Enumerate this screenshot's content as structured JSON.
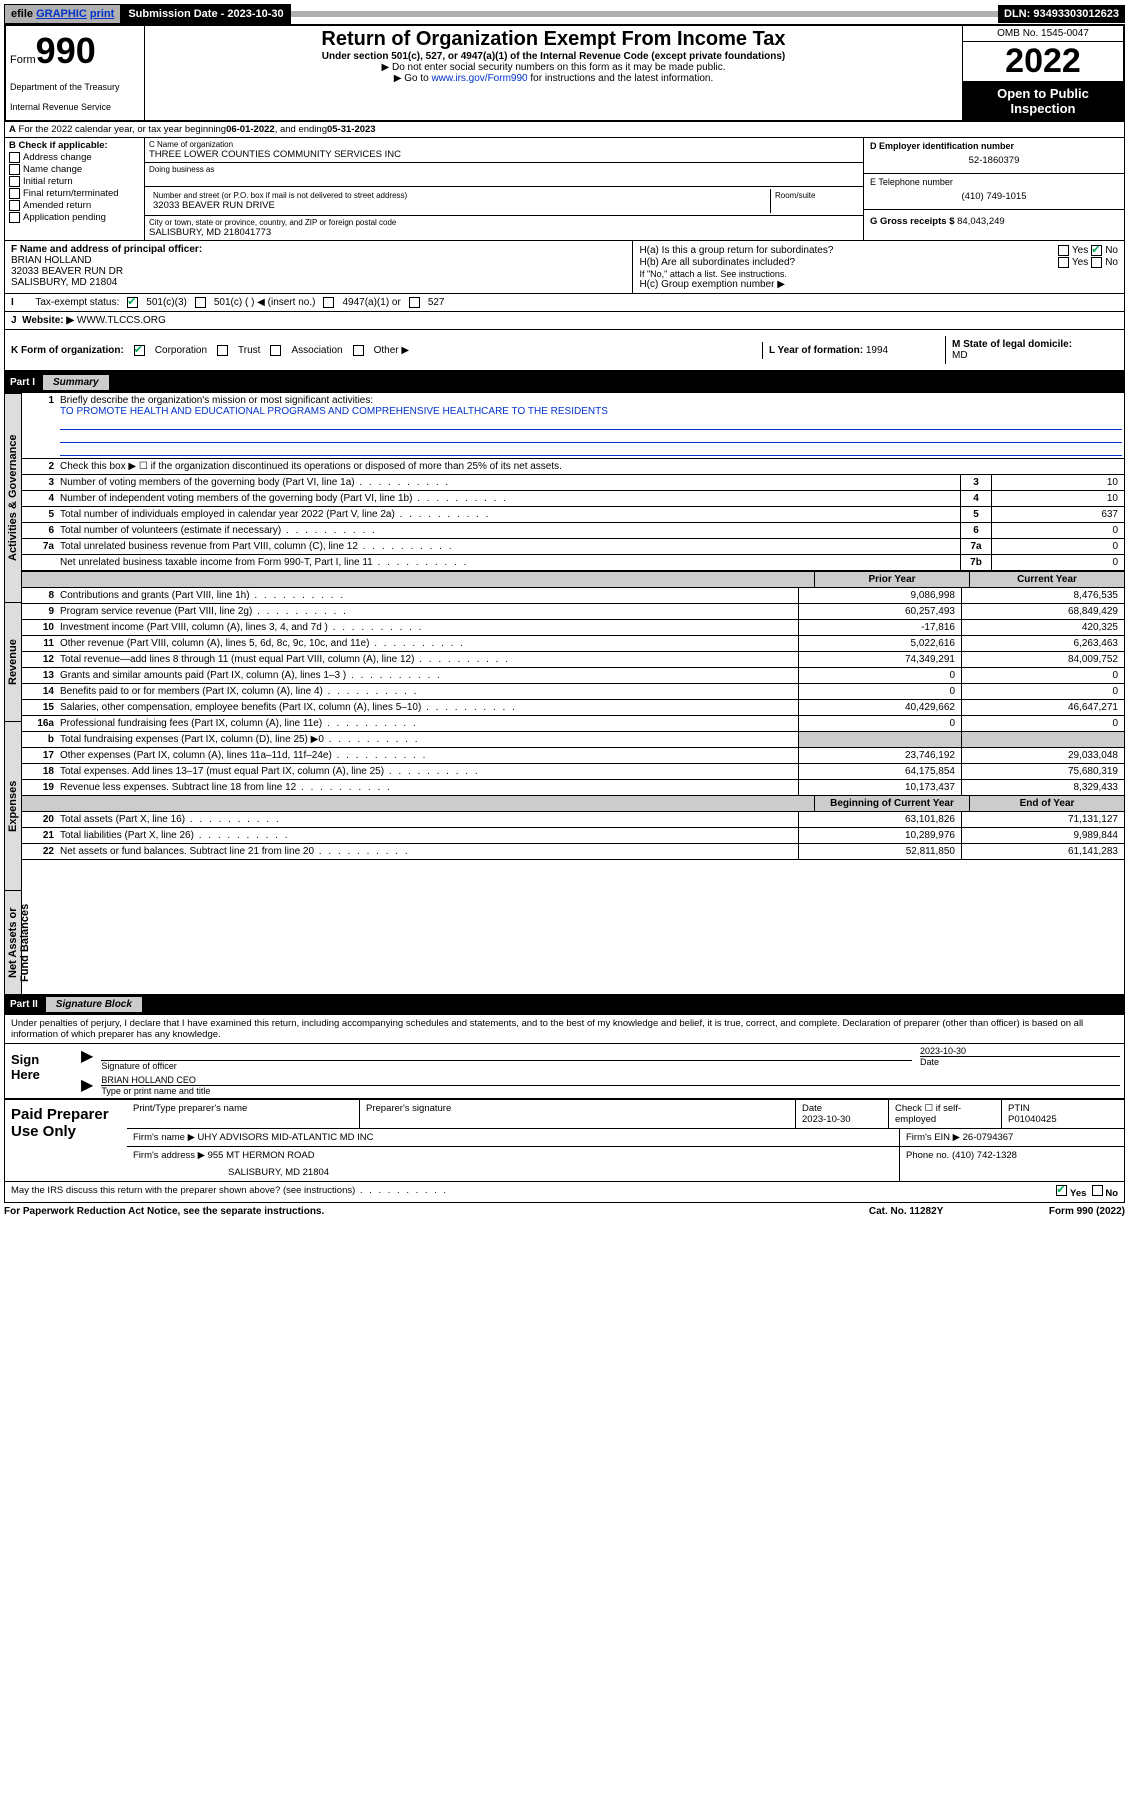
{
  "page_background": "#ffffff",
  "link_color": "#0033cc",
  "topbar": {
    "efile1": "efile",
    "efile2": "GRAPHIC",
    "efile3": "print",
    "submission_label": "Submission Date - 2023-10-30",
    "dln": "DLN: 93493303012623"
  },
  "header": {
    "form_word": "Form",
    "form_num": "990",
    "dept": "Department of the Treasury",
    "irs": "Internal Revenue Service",
    "title": "Return of Organization Exempt From Income Tax",
    "subtitle": "Under section 501(c), 527, or 4947(a)(1) of the Internal Revenue Code (except private foundations)",
    "note1": "▶ Do not enter social security numbers on this form as it may be made public.",
    "note2_pre": "▶ Go to ",
    "note2_link": "www.irs.gov/Form990",
    "note2_post": " for instructions and the latest information.",
    "omb": "OMB No. 1545-0047",
    "year": "2022",
    "open_pub": "Open to Public Inspection"
  },
  "a_line": {
    "text_pre": "For the 2022 calendar year, or tax year beginning ",
    "begin": "06-01-2022",
    "mid": " , and ending ",
    "end": "05-31-2023"
  },
  "blockB": {
    "heading": "B Check if applicable:",
    "items": [
      "Address change",
      "Name change",
      "Initial return",
      "Final return/terminated",
      "Amended return",
      "Application pending"
    ]
  },
  "blockC": {
    "label_name": "C Name of organization",
    "org_name": "THREE LOWER COUNTIES COMMUNITY SERVICES INC",
    "dba_label": "Doing business as",
    "addr_label": "Number and street (or P.O. box if mail is not delivered to street address)",
    "room_label": "Room/suite",
    "address": "32033 BEAVER RUN DRIVE",
    "city_label": "City or town, state or province, country, and ZIP or foreign postal code",
    "city": "SALISBURY, MD  218041773"
  },
  "blockD": {
    "label": "D Employer identification number",
    "value": "52-1860379"
  },
  "blockE": {
    "label": "E Telephone number",
    "value": "(410) 749-1015"
  },
  "blockG": {
    "label": "G Gross receipts $",
    "value": "84,043,249"
  },
  "blockF": {
    "label": "F  Name and address of principal officer:",
    "name": "BRIAN HOLLAND",
    "addr1": "32033 BEAVER RUN DR",
    "addr2": "SALISBURY, MD  21804"
  },
  "blockH": {
    "a_label": "H(a)  Is this a group return for subordinates?",
    "b_label": "H(b)  Are all subordinates included?",
    "b_note": "If \"No,\" attach a list. See instructions.",
    "c_label": "H(c)  Group exemption number ▶",
    "yes": "Yes",
    "no": "No"
  },
  "row_i": {
    "label": "Tax-exempt status:",
    "opt1": "501(c)(3)",
    "opt2": "501(c) (   ) ◀ (insert no.)",
    "opt3": "4947(a)(1) or",
    "opt4": "527"
  },
  "row_j": {
    "label": "Website: ▶",
    "value": "WWW.TLCCS.ORG"
  },
  "row_k": {
    "label": "K Form of organization:",
    "opts": [
      "Corporation",
      "Trust",
      "Association",
      "Other ▶"
    ]
  },
  "row_l": {
    "label": "L Year of formation:",
    "value": "1994"
  },
  "row_m": {
    "label": "M State of legal domicile:",
    "value": "MD"
  },
  "part1": {
    "label": "Part I",
    "title": "Summary"
  },
  "mission": {
    "q": "Briefly describe the organization's mission or most significant activities:",
    "text": "TO PROMOTE HEALTH AND EDUCATIONAL PROGRAMS AND COMPREHENSIVE HEALTHCARE TO THE RESIDENTS"
  },
  "line2": "Check this box ▶ ☐  if the organization discontinued its operations or disposed of more than 25% of its net assets.",
  "single_col_lines": [
    {
      "n": "3",
      "t": "Number of voting members of the governing body (Part VI, line 1a)",
      "box": "3",
      "v": "10"
    },
    {
      "n": "4",
      "t": "Number of independent voting members of the governing body (Part VI, line 1b)",
      "box": "4",
      "v": "10"
    },
    {
      "n": "5",
      "t": "Total number of individuals employed in calendar year 2022 (Part V, line 2a)",
      "box": "5",
      "v": "637"
    },
    {
      "n": "6",
      "t": "Total number of volunteers (estimate if necessary)",
      "box": "6",
      "v": "0"
    },
    {
      "n": "7a",
      "t": "Total unrelated business revenue from Part VIII, column (C), line 12",
      "box": "7a",
      "v": "0"
    },
    {
      "n": "",
      "t": "Net unrelated business taxable income from Form 990-T, Part I, line 11",
      "box": "7b",
      "v": "0"
    }
  ],
  "two_col_hdr": {
    "prior": "Prior Year",
    "current": "Current Year"
  },
  "revenue_lines": [
    {
      "n": "8",
      "t": "Contributions and grants (Part VIII, line 1h)",
      "p": "9,086,998",
      "c": "8,476,535"
    },
    {
      "n": "9",
      "t": "Program service revenue (Part VIII, line 2g)",
      "p": "60,257,493",
      "c": "68,849,429"
    },
    {
      "n": "10",
      "t": "Investment income (Part VIII, column (A), lines 3, 4, and 7d )",
      "p": "-17,816",
      "c": "420,325"
    },
    {
      "n": "11",
      "t": "Other revenue (Part VIII, column (A), lines 5, 6d, 8c, 9c, 10c, and 11e)",
      "p": "5,022,616",
      "c": "6,263,463"
    },
    {
      "n": "12",
      "t": "Total revenue—add lines 8 through 11 (must equal Part VIII, column (A), line 12)",
      "p": "74,349,291",
      "c": "84,009,752"
    }
  ],
  "expense_lines": [
    {
      "n": "13",
      "t": "Grants and similar amounts paid (Part IX, column (A), lines 1–3 )",
      "p": "0",
      "c": "0"
    },
    {
      "n": "14",
      "t": "Benefits paid to or for members (Part IX, column (A), line 4)",
      "p": "0",
      "c": "0"
    },
    {
      "n": "15",
      "t": "Salaries, other compensation, employee benefits (Part IX, column (A), lines 5–10)",
      "p": "40,429,662",
      "c": "46,647,271"
    },
    {
      "n": "16a",
      "t": "Professional fundraising fees (Part IX, column (A), line 11e)",
      "p": "0",
      "c": "0"
    },
    {
      "n": "b",
      "t": "Total fundraising expenses (Part IX, column (D), line 25) ▶0",
      "p": "SHADE",
      "c": "SHADE"
    },
    {
      "n": "17",
      "t": "Other expenses (Part IX, column (A), lines 11a–11d, 11f–24e)",
      "p": "23,746,192",
      "c": "29,033,048"
    },
    {
      "n": "18",
      "t": "Total expenses. Add lines 13–17 (must equal Part IX, column (A), line 25)",
      "p": "64,175,854",
      "c": "75,680,319"
    },
    {
      "n": "19",
      "t": "Revenue less expenses. Subtract line 18 from line 12",
      "p": "10,173,437",
      "c": "8,329,433"
    }
  ],
  "net_hdr": {
    "begin": "Beginning of Current Year",
    "end": "End of Year"
  },
  "net_lines": [
    {
      "n": "20",
      "t": "Total assets (Part X, line 16)",
      "p": "63,101,826",
      "c": "71,131,127"
    },
    {
      "n": "21",
      "t": "Total liabilities (Part X, line 26)",
      "p": "10,289,976",
      "c": "9,989,844"
    },
    {
      "n": "22",
      "t": "Net assets or fund balances. Subtract line 21 from line 20",
      "p": "52,811,850",
      "c": "61,141,283"
    }
  ],
  "vtabs": {
    "gov": "Activities & Governance",
    "rev": "Revenue",
    "exp": "Expenses",
    "net": "Net Assets or Fund Balances"
  },
  "part2": {
    "label": "Part II",
    "title": "Signature Block"
  },
  "sig_para": "Under penalties of perjury, I declare that I have examined this return, including accompanying schedules and statements, and to the best of my knowledge and belief, it is true, correct, and complete. Declaration of preparer (other than officer) is based on all information of which preparer has any knowledge.",
  "sign_here": "Sign Here",
  "sig": {
    "officer_line": "Signature of officer",
    "date_label": "Date",
    "date": "2023-10-30",
    "name_title": "BRIAN HOLLAND CEO",
    "name_line": "Type or print name and title"
  },
  "paid": {
    "title": "Paid Preparer Use Only",
    "h1": "Print/Type preparer's name",
    "h2": "Preparer's signature",
    "h3": "Date",
    "h3v": "2023-10-30",
    "h4": "Check ☐ if self-employed",
    "h5": "PTIN",
    "h5v": "P01040425",
    "firm_label": "Firm's name    ▶",
    "firm": "UHY ADVISORS MID-ATLANTIC MD INC",
    "ein_label": "Firm's EIN ▶",
    "ein": "26-0794367",
    "addr_label": "Firm's address ▶",
    "addr1": "955 MT HERMON ROAD",
    "addr2": "SALISBURY, MD  21804",
    "phone_label": "Phone no.",
    "phone": "(410) 742-1328"
  },
  "may_irs": "May the IRS discuss this return with the preparer shown above? (see instructions)",
  "footer": {
    "left": "For Paperwork Reduction Act Notice, see the separate instructions.",
    "mid": "Cat. No. 11282Y",
    "right": "Form 990 (2022)"
  }
}
